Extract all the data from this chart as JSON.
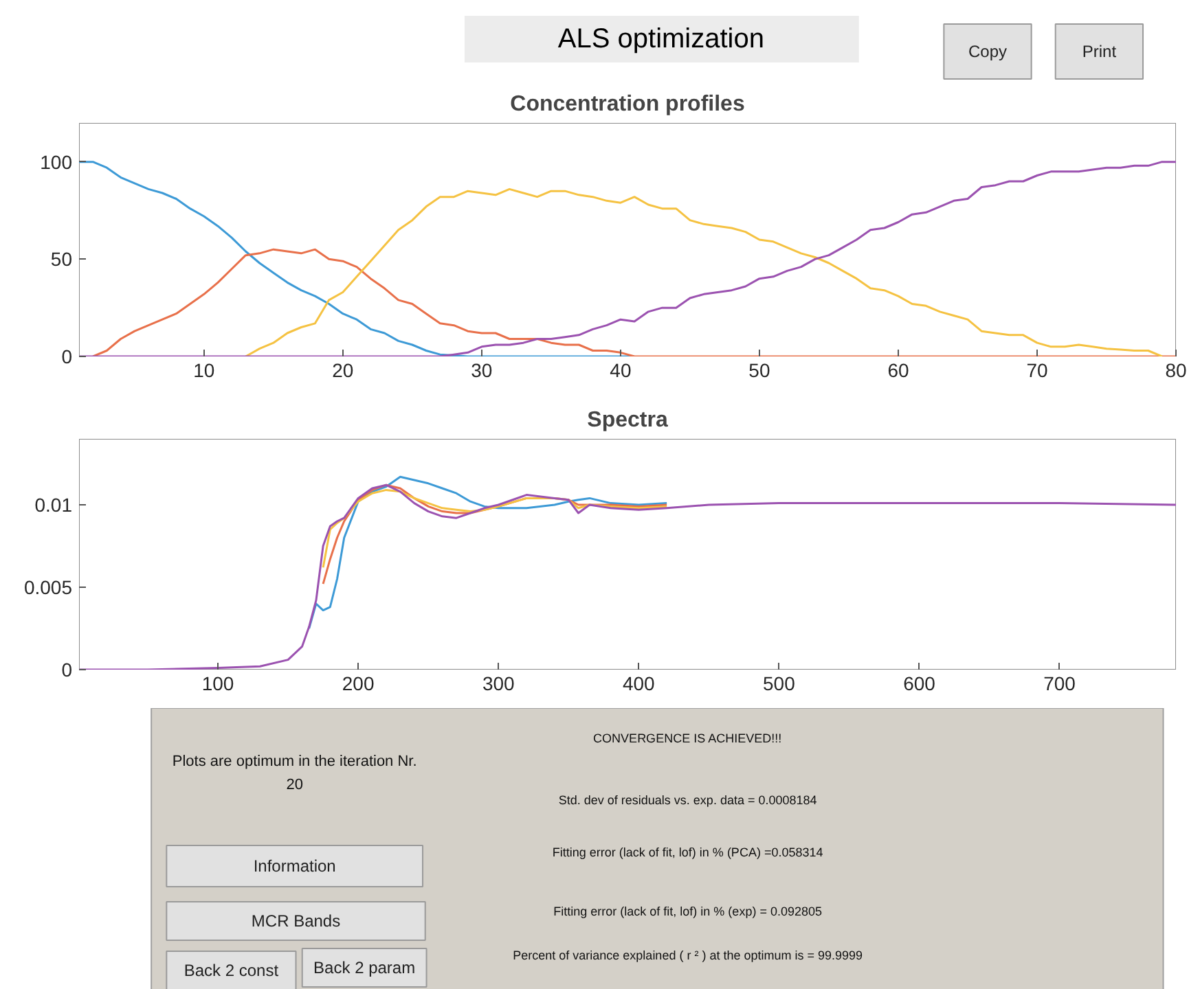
{
  "chart_data": [
    {
      "type": "other",
      "title": "ALS optimization",
      "annotations": [
        "Copy",
        "Print"
      ]
    },
    {
      "type": "line",
      "title": "Concentration profiles",
      "xlim": [
        1,
        80
      ],
      "ylim": [
        0,
        120
      ],
      "xticks": [
        10,
        20,
        30,
        40,
        50,
        60,
        70,
        80
      ],
      "yticks": [
        0,
        50,
        100
      ],
      "grid": false,
      "line_style": "solid",
      "x": [
        1,
        2,
        3,
        4,
        5,
        6,
        7,
        8,
        9,
        10,
        11,
        12,
        13,
        14,
        15,
        16,
        17,
        18,
        19,
        20,
        21,
        22,
        23,
        24,
        25,
        26,
        27,
        28,
        29,
        30,
        31,
        32,
        33,
        34,
        35,
        36,
        37,
        38,
        39,
        40,
        41,
        42,
        43,
        44,
        45,
        46,
        47,
        48,
        49,
        50,
        51,
        52,
        53,
        54,
        55,
        56,
        57,
        58,
        59,
        60,
        61,
        62,
        63,
        64,
        65,
        66,
        67,
        68,
        69,
        70,
        71,
        72,
        73,
        74,
        75,
        76,
        77,
        78,
        79,
        80
      ],
      "series": [
        {
          "color": "#3d9ad6",
          "values": [
            100,
            100,
            97,
            92,
            89,
            86,
            84,
            81,
            76,
            72,
            67,
            61,
            54,
            48,
            43,
            38,
            34,
            31,
            27,
            22,
            19,
            14,
            12,
            8,
            6,
            3,
            1,
            0.5,
            0,
            0,
            0,
            0,
            0,
            0,
            0,
            0,
            0,
            0,
            0,
            0,
            0,
            null,
            null,
            null,
            null,
            null,
            null,
            null,
            null,
            null,
            null,
            null,
            null,
            null,
            null,
            null,
            null,
            null,
            null,
            null,
            null,
            null,
            null,
            null,
            null,
            null,
            null,
            null,
            null,
            null,
            null,
            null,
            null,
            null,
            null,
            null,
            null,
            null,
            null,
            null
          ]
        },
        {
          "color": "#e8704a",
          "values": [
            null,
            0,
            3,
            9,
            13,
            16,
            19,
            22,
            27,
            32,
            38,
            45,
            52,
            53,
            55,
            54,
            53,
            55,
            50,
            49,
            46,
            40,
            35,
            29,
            27,
            22,
            17,
            16,
            13,
            12,
            12,
            9,
            9,
            9,
            7,
            6,
            6,
            3,
            3,
            2,
            0,
            0,
            0,
            0,
            0,
            0,
            0,
            0,
            0,
            0,
            0,
            0,
            0,
            0,
            0,
            0,
            0,
            0,
            0,
            0,
            0,
            0,
            0,
            0,
            0,
            0,
            0,
            0,
            0,
            0,
            0,
            0,
            0,
            0,
            0,
            0,
            0,
            0,
            0,
            0
          ]
        },
        {
          "color": "#f5c242",
          "values": [
            null,
            null,
            null,
            null,
            null,
            null,
            null,
            null,
            null,
            null,
            null,
            null,
            0,
            4,
            7,
            12,
            15,
            17,
            29,
            33,
            41,
            49,
            57,
            65,
            70,
            77,
            82,
            82,
            85,
            84,
            83,
            86,
            84,
            82,
            85,
            85,
            83,
            82,
            80,
            79,
            82,
            78,
            76,
            76,
            70,
            68,
            67,
            66,
            64,
            60,
            59,
            56,
            53,
            51,
            48,
            44,
            40,
            35,
            34,
            31,
            27,
            26,
            23,
            21,
            19,
            13,
            12,
            11,
            11,
            7,
            5,
            5,
            6,
            5,
            4,
            3.5,
            3,
            3,
            0,
            null
          ]
        },
        {
          "color": "#9b52b0",
          "values": [
            0,
            0,
            0,
            0,
            0,
            0,
            0,
            0,
            0,
            0,
            0,
            0,
            0,
            0,
            0,
            0,
            0,
            0,
            0,
            0,
            0,
            0,
            0,
            0,
            0,
            0,
            0,
            1,
            2,
            5,
            6,
            6,
            7,
            9,
            9,
            10,
            11,
            14,
            16,
            19,
            18,
            23,
            25,
            25,
            30,
            32,
            33,
            34,
            36,
            40,
            41,
            44,
            46,
            50,
            52,
            56,
            60,
            65,
            66,
            69,
            73,
            74,
            77,
            80,
            81,
            87,
            88,
            90,
            90,
            93,
            95,
            95,
            95,
            96,
            97,
            97,
            98,
            98,
            100,
            100
          ]
        }
      ]
    },
    {
      "type": "line",
      "title": "Spectra",
      "xlim": [
        1,
        783
      ],
      "ylim": [
        0,
        0.014
      ],
      "xticks": [
        100,
        200,
        300,
        400,
        500,
        600,
        700
      ],
      "yticks": [
        0,
        0.005,
        0.01
      ],
      "grid": false,
      "line_style": "solid",
      "x": [
        1,
        50,
        100,
        130,
        150,
        160,
        165,
        170,
        175,
        180,
        185,
        190,
        200,
        210,
        220,
        230,
        240,
        250,
        260,
        270,
        280,
        290,
        300,
        320,
        340,
        350,
        357,
        365,
        380,
        400,
        420,
        450,
        500,
        600,
        700,
        783
      ],
      "series": [
        {
          "color": "#3d9ad6",
          "x": [
            165,
            170,
            175,
            180,
            185,
            190,
            200,
            210,
            220,
            230,
            240,
            250,
            260,
            270,
            280,
            290,
            300,
            320,
            340,
            350,
            357,
            365,
            380,
            400,
            420
          ],
          "values": [
            0.0025,
            0.004,
            0.0036,
            0.0038,
            0.0055,
            0.008,
            0.0102,
            0.0108,
            0.0111,
            0.0117,
            0.0115,
            0.0113,
            0.011,
            0.0107,
            0.0102,
            0.0099,
            0.0098,
            0.0098,
            0.01,
            0.0102,
            0.0103,
            0.0104,
            0.0101,
            0.01,
            0.0101
          ]
        },
        {
          "color": "#e8704a",
          "x": [
            175,
            180,
            185,
            190,
            200,
            210,
            220,
            230,
            240,
            250,
            260,
            270,
            280,
            290,
            300,
            320,
            340,
            350,
            357,
            365,
            380,
            400,
            420
          ],
          "values": [
            0.0052,
            0.0067,
            0.008,
            0.009,
            0.0103,
            0.0109,
            0.0112,
            0.011,
            0.0104,
            0.0099,
            0.0096,
            0.0095,
            0.0095,
            0.0097,
            0.0099,
            0.0104,
            0.0104,
            0.0103,
            0.01,
            0.01,
            0.01,
            0.0099,
            0.01
          ]
        },
        {
          "color": "#f5c242",
          "x": [
            175,
            180,
            185,
            190,
            200,
            210,
            220,
            230,
            240,
            250,
            260,
            270,
            280,
            290,
            300,
            320,
            340,
            350,
            357,
            365,
            380,
            400,
            420
          ],
          "values": [
            0.0062,
            0.0085,
            0.0089,
            0.0092,
            0.0102,
            0.0107,
            0.0109,
            0.0108,
            0.0104,
            0.0101,
            0.0098,
            0.0097,
            0.0096,
            0.0097,
            0.0099,
            0.0104,
            0.0104,
            0.0103,
            0.0098,
            0.01,
            0.0099,
            0.0098,
            0.0099
          ]
        },
        {
          "color": "#9b52b0",
          "values": [
            0,
            0,
            0.0001,
            0.0002,
            0.0006,
            0.0014,
            0.0026,
            0.0042,
            0.0075,
            0.0087,
            0.009,
            0.0092,
            0.0104,
            0.011,
            0.0112,
            0.0108,
            0.0101,
            0.0096,
            0.0093,
            0.0092,
            0.0095,
            0.0098,
            0.01,
            0.0106,
            0.0104,
            0.0103,
            0.0095,
            0.01,
            0.0098,
            0.0097,
            0.0098,
            0.01,
            0.0101,
            0.0101,
            0.0101,
            0.01
          ]
        }
      ]
    },
    {
      "type": "other",
      "annotations": [
        "Plots are optimum in the iteration Nr.",
        "20",
        "CONVERGENCE IS ACHIEVED!!!",
        "Std. dev of residuals vs. exp. data = 0.0008184",
        "Fitting error (lack of fit, lof) in % (PCA) =0.058314",
        "Fitting error (lack of fit, lof) in % (exp) = 0.092805",
        "Percent of variance explained ( r ² ) at the optimum is = 99.9999",
        "Information",
        "MCR Bands",
        "Back 2 const",
        "Back 2 param"
      ]
    }
  ]
}
